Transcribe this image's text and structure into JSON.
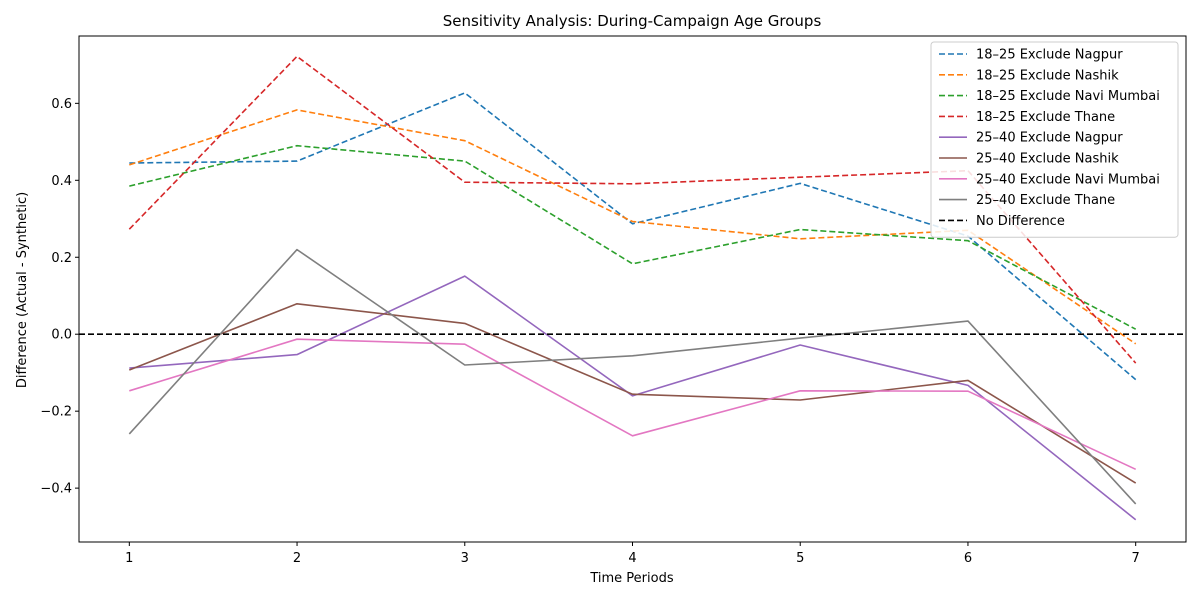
{
  "chart_data": {
    "type": "line",
    "title": "Sensitivity Analysis: During-Campaign Age Groups",
    "xlabel": "Time Periods",
    "ylabel": "Difference (Actual - Synthetic)",
    "x": [
      1,
      2,
      3,
      4,
      5,
      6,
      7
    ],
    "xticks": [
      "1",
      "2",
      "3",
      "4",
      "5",
      "6",
      "7"
    ],
    "yticks": [
      "−0.4",
      "−0.2",
      "0.0",
      "0.2",
      "0.4",
      "0.6"
    ],
    "xlim": [
      0.7,
      7.3
    ],
    "ylim": [
      -0.54,
      0.775
    ],
    "grid": false,
    "legend_position": "top-right",
    "series": [
      {
        "name": "18–25 Exclude Nagpur",
        "color": "#1f77b4",
        "style": "dashed",
        "values": [
          0.445,
          0.45,
          0.627,
          0.287,
          0.392,
          0.255,
          -0.118
        ]
      },
      {
        "name": "18–25 Exclude Nashik",
        "color": "#ff7f0e",
        "style": "dashed",
        "values": [
          0.44,
          0.583,
          0.503,
          0.293,
          0.248,
          0.27,
          -0.025
        ]
      },
      {
        "name": "18–25 Exclude Navi Mumbai",
        "color": "#2ca02c",
        "style": "dashed",
        "values": [
          0.385,
          0.49,
          0.45,
          0.183,
          0.272,
          0.243,
          0.013
        ]
      },
      {
        "name": "18–25 Exclude Thane",
        "color": "#d62728",
        "style": "dashed",
        "values": [
          0.273,
          0.722,
          0.395,
          0.391,
          0.408,
          0.425,
          -0.075
        ]
      },
      {
        "name": "25–40 Exclude Nagpur",
        "color": "#9467bd",
        "style": "solid",
        "values": [
          -0.088,
          -0.053,
          0.151,
          -0.16,
          -0.028,
          -0.133,
          -0.482
        ]
      },
      {
        "name": "25–40 Exclude Nashik",
        "color": "#8c564b",
        "style": "solid",
        "values": [
          -0.093,
          0.079,
          0.028,
          -0.156,
          -0.171,
          -0.12,
          -0.387
        ]
      },
      {
        "name": "25–40 Exclude Navi Mumbai",
        "color": "#e377c2",
        "style": "solid",
        "values": [
          -0.147,
          -0.013,
          -0.026,
          -0.264,
          -0.147,
          -0.148,
          -0.351
        ]
      },
      {
        "name": "25–40 Exclude Thane",
        "color": "#7f7f7f",
        "style": "solid",
        "values": [
          -0.259,
          0.22,
          -0.08,
          -0.056,
          -0.01,
          0.034,
          -0.441
        ]
      }
    ],
    "reference_line": {
      "name": "No Difference",
      "y": 0.0,
      "color": "#000000",
      "style": "dashed"
    }
  }
}
